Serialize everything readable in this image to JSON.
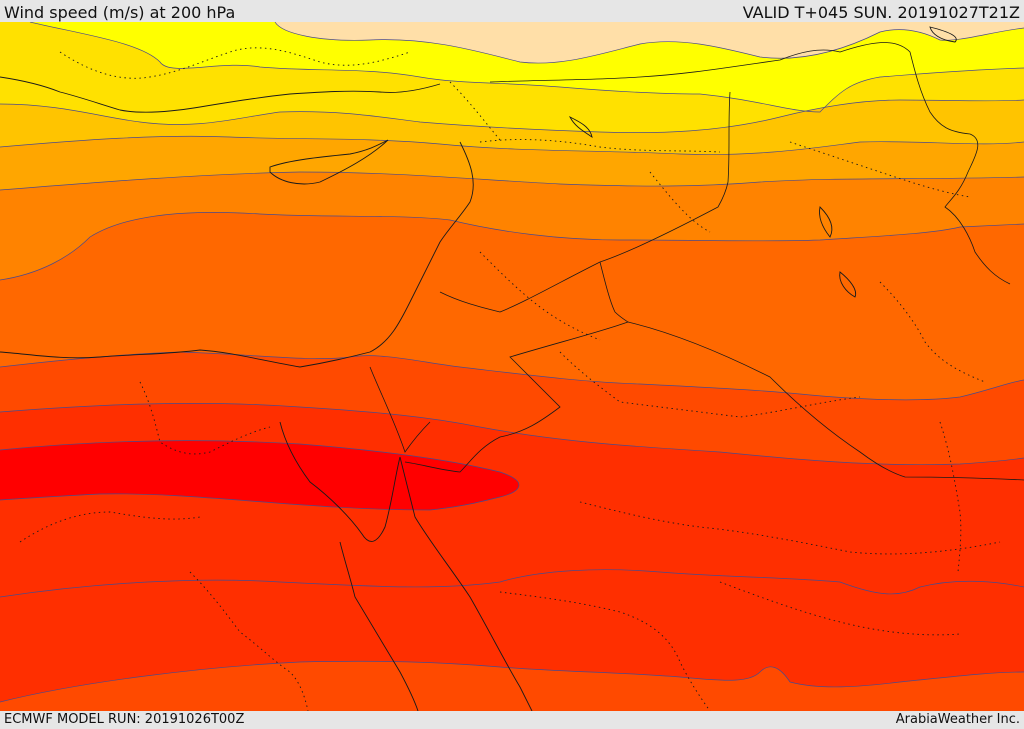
{
  "header": {
    "title": "Wind speed (m/s) at 200 hPa",
    "valid": "VALID T+045 SUN. 20191027T21Z"
  },
  "footer": {
    "model_run": "ECMWF MODEL RUN: 20191026T00Z",
    "provider": "ArabiaWeather Inc."
  },
  "colors": {
    "band_1": "#ffdfa8",
    "band_2": "#ffff00",
    "band_3": "#ffe100",
    "band_4": "#ffc400",
    "band_5": "#ffa600",
    "band_6": "#ff8300",
    "band_7": "#ff6800",
    "band_8": "#ff4a00",
    "band_9": "#ff2f00",
    "band_10": "#ff1c00",
    "band_11": "#ff0000"
  }
}
